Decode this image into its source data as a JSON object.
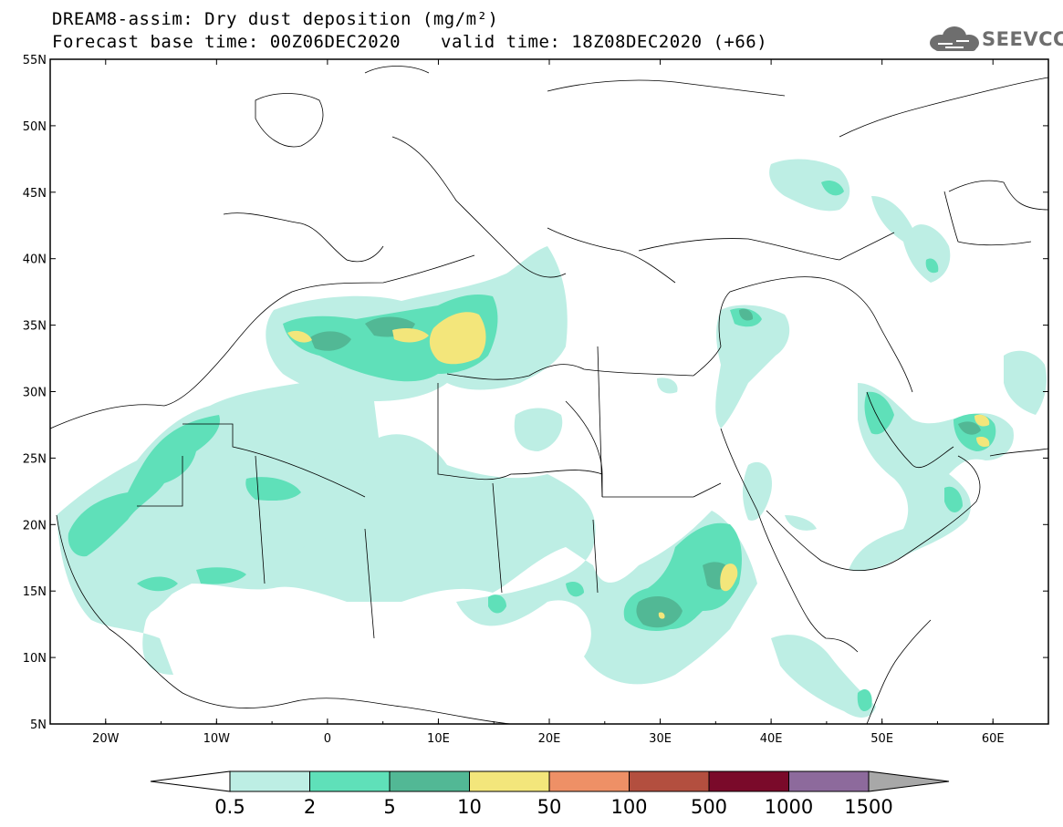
{
  "header": {
    "title_line1": "DREAM8-assim: Dry dust deposition (mg/m²)",
    "title_line2_left": "Forecast base time: 00Z06DEC2020",
    "title_line2_right": "valid time: 18Z08DEC2020 (+66)",
    "logo_text": "SEEVCCC"
  },
  "map": {
    "lat_labels": [
      "55N",
      "50N",
      "45N",
      "40N",
      "35N",
      "30N",
      "25N",
      "20N",
      "15N",
      "10N",
      "5N"
    ],
    "lon_labels": [
      "20W",
      "10W",
      "0",
      "10E",
      "20E",
      "30E",
      "40E",
      "50E",
      "60E"
    ],
    "lon_range": [
      -25,
      65
    ],
    "lat_range": [
      5,
      55
    ]
  },
  "colorbar": {
    "labels": [
      "0.5",
      "2",
      "5",
      "10",
      "50",
      "100",
      "500",
      "1000",
      "1500"
    ],
    "colors": [
      "#bdeee4",
      "#5fe0b9",
      "#52b895",
      "#f3e67b",
      "#ee9066",
      "#b34f3f",
      "#7a0a2a",
      "#8d6a9c",
      "#a8a8a8"
    ]
  }
}
